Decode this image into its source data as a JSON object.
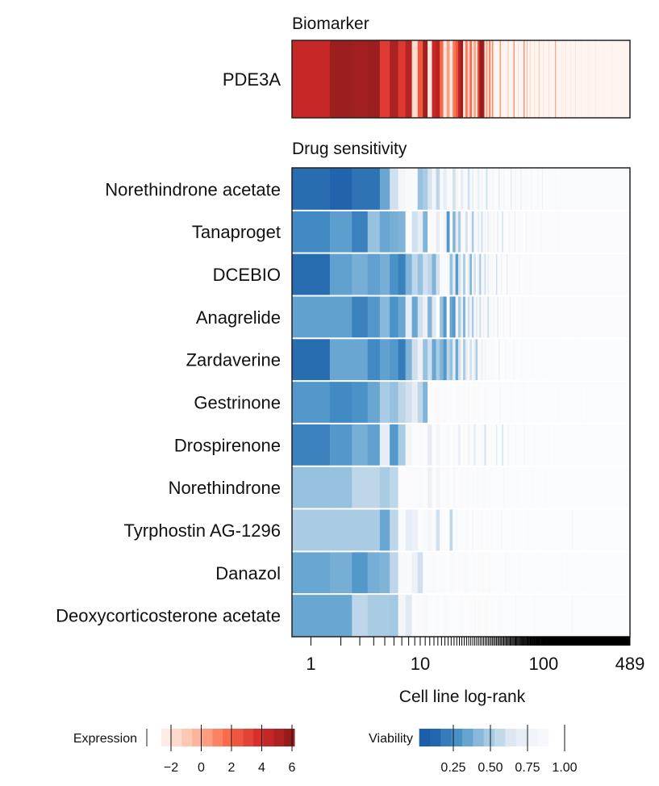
{
  "chart_data": {
    "type": "heatmap",
    "x_axis": {
      "label": "Cell line log-rank",
      "scale": "log",
      "range": [
        1,
        489
      ],
      "tick_labels": [
        "1",
        "10",
        "100",
        "489"
      ],
      "tick_values": [
        1,
        10,
        100,
        489
      ]
    },
    "biomarker": {
      "section_title": "Biomarker",
      "name": "PDE3A",
      "values": [
        4.5,
        5.8,
        5.6,
        5.8,
        3.5,
        5.3,
        3.6,
        5.0,
        -1.5,
        2.5,
        5.6,
        -2,
        4.5,
        5,
        2,
        -2,
        0.5,
        -2,
        1.5,
        2.5,
        4.8,
        5.8,
        -2,
        1.5,
        -1,
        2,
        -2,
        0.5,
        -1.5,
        3,
        5.8,
        6,
        5.5,
        -2,
        0.5,
        -2,
        1.5,
        -2,
        1,
        -2.5
      ],
      "other_ranks": {
        "default": -2.5,
        "values": [
          [
            45,
            0.5
          ],
          [
            52,
            -1
          ],
          [
            58,
            1.5
          ],
          [
            63,
            -1.5
          ],
          [
            70,
            2.5
          ],
          [
            74,
            0
          ],
          [
            78,
            -1
          ],
          [
            85,
            -1.5
          ],
          [
            92,
            0
          ],
          [
            100,
            -1.5
          ],
          [
            110,
            -1
          ],
          [
            125,
            3.5
          ],
          [
            140,
            -1.5
          ],
          [
            150,
            -1
          ],
          [
            165,
            -1.5
          ],
          [
            180,
            -1
          ],
          [
            200,
            -1.8
          ],
          [
            230,
            -1.5
          ],
          [
            260,
            -1.5
          ],
          [
            300,
            -1.8
          ],
          [
            350,
            -1.5
          ],
          [
            420,
            -1.8
          ]
        ]
      }
    },
    "drug_section_title": "Drug sensitivity",
    "drugs": [
      {
        "name": "Norethindrone acetate",
        "values": [
          0.15,
          0.12,
          0.17,
          0.17,
          0.35,
          0.6,
          0.8,
          0.88,
          0.92,
          0.45,
          0.5,
          0.62,
          0.8,
          0.55,
          0.85,
          0.7,
          0.9,
          0.95,
          0.6,
          0.8,
          0.9,
          0.7,
          0.85,
          0.95,
          0.6,
          0.9,
          0.75,
          0.95,
          0.85,
          0.7,
          0.92,
          0.8,
          0.95,
          0.9,
          0.6,
          0.93,
          0.85,
          0.95,
          0.8,
          0.9
        ],
        "other_ranks": {
          "default": 0.93,
          "values": [
            [
              44,
              0.7
            ],
            [
              48,
              0.8
            ],
            [
              55,
              0.65
            ],
            [
              60,
              0.8
            ],
            [
              66,
              0.7
            ],
            [
              72,
              0.85
            ],
            [
              80,
              0.75
            ],
            [
              90,
              0.8
            ],
            [
              98,
              0.7
            ],
            [
              110,
              0.85
            ],
            [
              125,
              0.8
            ],
            [
              140,
              0.85
            ],
            [
              160,
              0.8
            ],
            [
              190,
              0.85
            ],
            [
              220,
              0.8
            ],
            [
              260,
              0.85
            ],
            [
              300,
              0.82
            ],
            [
              350,
              0.85
            ],
            [
              400,
              0.8
            ],
            [
              450,
              0.85
            ]
          ]
        }
      },
      {
        "name": "Tanaproget",
        "values": [
          0.25,
          0.32,
          0.22,
          0.45,
          0.35,
          0.38,
          0.4,
          0.95,
          0.6,
          0.7,
          0.4,
          0.9,
          0.92,
          0.7,
          0.9,
          0.8,
          0.3,
          0.9,
          0.4,
          0.7,
          0.5,
          0.85,
          0.9,
          0.6,
          0.95,
          0.8,
          0.5,
          0.9,
          0.85,
          0.7,
          0.95,
          0.6,
          0.9,
          0.8,
          0.95,
          0.7,
          0.9,
          0.85,
          0.95,
          0.8
        ],
        "other_ranks": {
          "default": 0.95,
          "values": [
            [
              43,
              0.7
            ],
            [
              47,
              0.6
            ],
            [
              53,
              0.8
            ],
            [
              59,
              0.7
            ],
            [
              65,
              0.85
            ],
            [
              73,
              0.75
            ],
            [
              82,
              0.85
            ],
            [
              95,
              0.8
            ],
            [
              108,
              0.85
            ],
            [
              130,
              0.8
            ],
            [
              160,
              0.88
            ],
            [
              210,
              0.85
            ],
            [
              280,
              0.88
            ],
            [
              360,
              0.86
            ]
          ]
        }
      },
      {
        "name": "DCEBIO",
        "values": [
          0.15,
          0.33,
          0.38,
          0.33,
          0.38,
          0.28,
          0.22,
          0.4,
          0.55,
          0.45,
          0.6,
          0.55,
          0.4,
          0.6,
          0.9,
          0.92,
          0.85,
          0.45,
          0.7,
          0.3,
          0.6,
          0.8,
          0.5,
          0.9,
          0.7,
          0.4,
          0.85,
          0.6,
          0.9,
          0.75,
          0.5,
          0.9,
          0.8,
          0.6,
          0.95,
          0.7,
          0.9,
          0.85,
          0.8,
          0.95
        ],
        "other_ranks": {
          "default": 0.95,
          "values": [
            [
              42,
              0.6
            ],
            [
              46,
              0.75
            ],
            [
              51,
              0.7
            ],
            [
              57,
              0.85
            ],
            [
              64,
              0.8
            ],
            [
              71,
              0.85
            ],
            [
              79,
              0.8
            ],
            [
              92,
              0.88
            ],
            [
              120,
              0.85
            ],
            [
              170,
              0.88
            ]
          ]
        }
      },
      {
        "name": "Anagrelide",
        "values": [
          0.33,
          0.33,
          0.22,
          0.3,
          0.42,
          0.28,
          0.35,
          0.7,
          0.35,
          0.6,
          0.75,
          0.4,
          0.65,
          0.95,
          0.45,
          0.3,
          0.95,
          0.35,
          0.3,
          0.8,
          0.5,
          0.7,
          0.4,
          0.9,
          0.6,
          0.8,
          0.5,
          0.9,
          0.7,
          0.85,
          0.6,
          0.9,
          0.75,
          0.95,
          0.8,
          0.6,
          0.9,
          0.85,
          0.95,
          0.8
        ],
        "other_ranks": {
          "default": 0.95,
          "values": [
            [
              43,
              0.7
            ],
            [
              48,
              0.8
            ],
            [
              54,
              0.75
            ],
            [
              61,
              0.85
            ],
            [
              68,
              0.8
            ],
            [
              77,
              0.88
            ],
            [
              90,
              0.85
            ],
            [
              115,
              0.88
            ]
          ]
        }
      },
      {
        "name": "Zardaverine",
        "values": [
          0.15,
          0.35,
          0.35,
          0.25,
          0.33,
          0.3,
          0.2,
          0.4,
          0.6,
          0.75,
          0.45,
          0.6,
          0.35,
          0.5,
          0.4,
          0.3,
          0.55,
          0.45,
          0.7,
          0.35,
          0.6,
          0.8,
          0.5,
          0.7,
          0.85,
          0.6,
          0.9,
          0.7,
          0.5,
          0.85,
          0.9,
          0.75,
          0.95,
          0.8,
          0.9,
          0.85,
          0.95,
          0.9,
          0.92,
          0.95
        ],
        "other_ranks": {
          "default": 0.96,
          "values": [
            [
              44,
              0.75
            ],
            [
              50,
              0.85
            ],
            [
              58,
              0.8
            ],
            [
              67,
              0.88
            ],
            [
              80,
              0.85
            ],
            [
              100,
              0.9
            ]
          ]
        }
      },
      {
        "name": "Gestrinone",
        "values": [
          0.3,
          0.25,
          0.28,
          0.35,
          0.5,
          0.45,
          0.55,
          0.6,
          0.7,
          0.55,
          0.4,
          0.95,
          0.97,
          0.92,
          0.95,
          0.9,
          0.97,
          0.93,
          0.96,
          0.9,
          0.95,
          0.97,
          0.92,
          0.96,
          0.9,
          0.97,
          0.95,
          0.93,
          0.97,
          0.9,
          0.96,
          0.95,
          0.97,
          0.92,
          0.96,
          0.95,
          0.97,
          0.93,
          0.96,
          0.95
        ],
        "other_ranks": {
          "default": 0.96,
          "values": [
            [
              45,
              0.85
            ],
            [
              55,
              0.88
            ],
            [
              70,
              0.85
            ],
            [
              90,
              0.88
            ],
            [
              130,
              0.86
            ],
            [
              200,
              0.88
            ],
            [
              300,
              0.86
            ]
          ]
        }
      },
      {
        "name": "Drospirenone",
        "values": [
          0.22,
          0.3,
          0.38,
          0.33,
          0.7,
          0.3,
          0.5,
          0.8,
          0.9,
          0.92,
          0.95,
          0.7,
          0.96,
          0.8,
          0.95,
          0.93,
          0.85,
          0.97,
          0.9,
          0.95,
          0.75,
          0.96,
          0.9,
          0.97,
          0.8,
          0.95,
          0.93,
          0.7,
          0.96,
          0.9,
          0.97,
          0.85,
          0.95,
          0.6,
          0.96,
          0.9,
          0.97,
          0.93,
          0.96,
          0.95
        ],
        "other_ranks": {
          "default": 0.96,
          "values": [
            [
              42,
              0.7
            ],
            [
              47,
              0.6
            ],
            [
              52,
              0.75
            ],
            [
              60,
              0.85
            ],
            [
              70,
              0.8
            ],
            [
              85,
              0.88
            ],
            [
              110,
              0.85
            ],
            [
              150,
              0.88
            ],
            [
              220,
              0.86
            ],
            [
              320,
              0.88
            ]
          ]
        }
      },
      {
        "name": "Norethindrone",
        "values": [
          0.45,
          0.45,
          0.55,
          0.55,
          0.5,
          0.55,
          0.95,
          0.95,
          0.9,
          0.88,
          0.95,
          0.75,
          0.96,
          0.8,
          0.93,
          0.95,
          0.9,
          0.97,
          0.85,
          0.95,
          0.96,
          0.9,
          0.97,
          0.93,
          0.95,
          0.96,
          0.9,
          0.97,
          0.95,
          0.93,
          0.96,
          0.97,
          0.9,
          0.95,
          0.96,
          0.97,
          0.93,
          0.95,
          0.96,
          0.97
        ],
        "other_ranks": {
          "default": 0.96,
          "values": [
            [
              48,
              0.85
            ],
            [
              62,
              0.88
            ],
            [
              80,
              0.86
            ],
            [
              105,
              0.88
            ],
            [
              160,
              0.87
            ],
            [
              250,
              0.88
            ]
          ]
        }
      },
      {
        "name": "Tyrphostin AG-1296",
        "values": [
          0.5,
          0.5,
          0.5,
          0.5,
          0.35,
          0.55,
          0.9,
          0.7,
          0.75,
          0.93,
          0.9,
          0.8,
          0.95,
          0.6,
          0.95,
          0.93,
          0.97,
          0.55,
          0.95,
          0.9,
          0.96,
          0.93,
          0.97,
          0.9,
          0.95,
          0.96,
          0.85,
          0.97,
          0.93,
          0.95,
          0.96,
          0.9,
          0.97,
          0.95,
          0.93,
          0.96,
          0.97,
          0.9,
          0.95,
          0.96
        ],
        "other_ranks": {
          "default": 0.96,
          "values": [
            [
              46,
              0.85
            ],
            [
              58,
              0.88
            ],
            [
              75,
              0.86
            ],
            [
              100,
              0.88
            ],
            [
              170,
              0.7
            ],
            [
              260,
              0.88
            ]
          ]
        }
      },
      {
        "name": "Danazol",
        "values": [
          0.35,
          0.38,
          0.3,
          0.38,
          0.4,
          0.55,
          0.88,
          0.9,
          0.75,
          0.6,
          0.93,
          0.95,
          0.9,
          0.96,
          0.93,
          0.95,
          0.97,
          0.9,
          0.95,
          0.96,
          0.93,
          0.97,
          0.95,
          0.9,
          0.96,
          0.97,
          0.93,
          0.95,
          0.96,
          0.9,
          0.97,
          0.95,
          0.93,
          0.96,
          0.97,
          0.95,
          0.9,
          0.96,
          0.97,
          0.95
        ],
        "other_ranks": {
          "default": 0.96,
          "values": [
            [
              50,
              0.85
            ],
            [
              65,
              0.88
            ],
            [
              90,
              0.86
            ],
            [
              140,
              0.88
            ],
            [
              220,
              0.87
            ]
          ]
        }
      },
      {
        "name": "Deoxycorticosterone acetate",
        "values": [
          0.35,
          0.35,
          0.55,
          0.5,
          0.5,
          0.48,
          0.8,
          0.65,
          0.95,
          0.92,
          0.85,
          0.95,
          0.96,
          0.93,
          0.97,
          0.9,
          0.95,
          0.96,
          0.93,
          0.97,
          0.95,
          0.9,
          0.96,
          0.97,
          0.93,
          0.95,
          0.96,
          0.9,
          0.97,
          0.95,
          0.93,
          0.96,
          0.97,
          0.95,
          0.9,
          0.96,
          0.97,
          0.95,
          0.93,
          0.96
        ],
        "other_ranks": {
          "default": 0.96,
          "values": [
            [
              45,
              0.88
            ],
            [
              60,
              0.86
            ],
            [
              85,
              0.88
            ],
            [
              130,
              0.87
            ],
            [
              170,
              0.75
            ],
            [
              240,
              0.88
            ]
          ]
        }
      }
    ],
    "legends": {
      "expression": {
        "label": "Expression",
        "ticks": [
          "−2",
          "0",
          "2",
          "4",
          "6"
        ],
        "tick_values": [
          -2,
          0,
          2,
          4,
          6
        ],
        "range": [
          -2.5,
          6.3
        ],
        "colors": [
          "#fff5f0",
          "#fcbba1",
          "#fb6a4a",
          "#d42a2a",
          "#8b1a1a"
        ]
      },
      "viability": {
        "label": "Viability",
        "ticks": [
          "0.25",
          "0.50",
          "0.75",
          "1.00"
        ],
        "tick_values": [
          0.25,
          0.5,
          0.75,
          1.0
        ],
        "colors": [
          "#1c5ea8",
          "#4a93c8",
          "#9ac4e0",
          "#dfe8f2",
          "#f6f7fa",
          "#fdfdfe"
        ]
      }
    }
  }
}
